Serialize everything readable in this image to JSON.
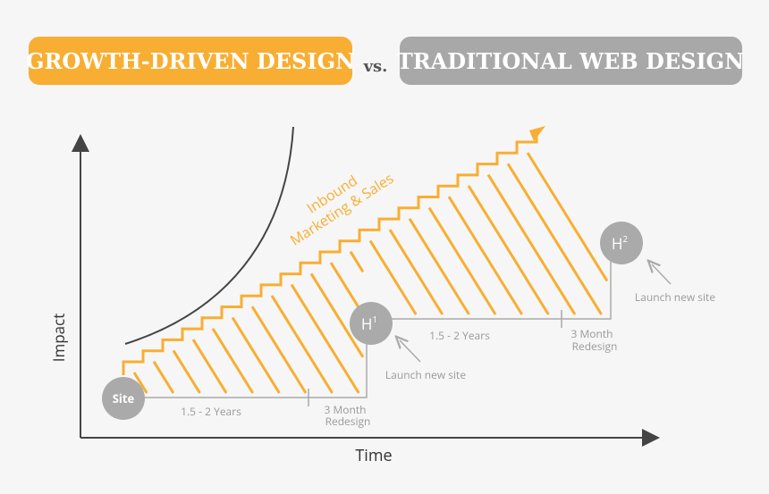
{
  "header": {
    "left": "GROWTH-DRIVEN DESIGN",
    "middle": "vs.",
    "right": "TRADITIONAL WEB DESIGN"
  },
  "diagram": {
    "curve_label": [
      "Inbound",
      "Marketing & Sales"
    ],
    "y_axis": "Impact",
    "x_axis": "Time",
    "nodes": [
      {
        "label": "Site"
      },
      {
        "label": "H",
        "sup": "1"
      },
      {
        "label": "H",
        "sup": "2"
      }
    ],
    "periods": [
      {
        "duration": "1.5 - 2 Years",
        "redesign": [
          "3 Month",
          "Redesign"
        ],
        "launch": "Launch new site"
      },
      {
        "duration": "1.5 - 2 Years",
        "redesign": [
          "3 Month",
          "Redesign"
        ],
        "launch": "Launch new site"
      }
    ]
  }
}
